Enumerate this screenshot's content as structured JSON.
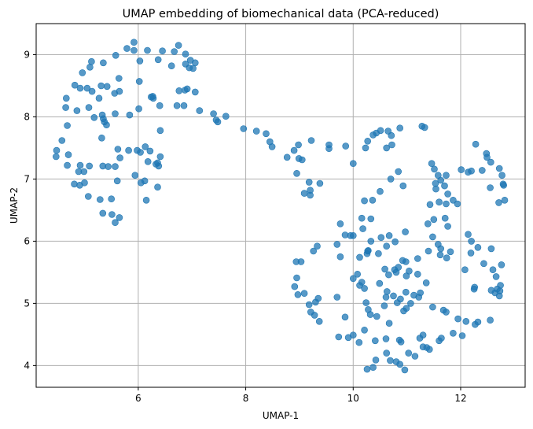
{
  "chart_data": {
    "type": "scatter",
    "title": "UMAP embedding of biomechanical data (PCA-reduced)",
    "xlabel": "UMAP-1",
    "ylabel": "UMAP-2",
    "xlim": [
      4.1,
      13.2
    ],
    "ylim": [
      3.65,
      9.5
    ],
    "xticks": [
      6,
      8,
      10,
      12
    ],
    "yticks": [
      4,
      5,
      6,
      7,
      8,
      9
    ],
    "grid": true,
    "legend": "none",
    "point_color": "#1f77b4",
    "point_alpha": 0.75,
    "points": [
      [
        5.92,
        9.2
      ],
      [
        5.79,
        9.1
      ],
      [
        6.17,
        9.07
      ],
      [
        6.45,
        9.06
      ],
      [
        6.75,
        9.15
      ],
      [
        5.92,
        9.07
      ],
      [
        5.58,
        8.99
      ],
      [
        6.67,
        9.05
      ],
      [
        6.03,
        8.9
      ],
      [
        6.37,
        8.92
      ],
      [
        5.35,
        8.87
      ],
      [
        5.13,
        8.89
      ],
      [
        5.1,
        8.8
      ],
      [
        4.96,
        8.71
      ],
      [
        6.88,
        9.01
      ],
      [
        6.97,
        8.91
      ],
      [
        7.06,
        8.87
      ],
      [
        6.88,
        8.85
      ],
      [
        6.95,
        8.79
      ],
      [
        6.62,
        8.82
      ],
      [
        7.02,
        8.78
      ],
      [
        5.64,
        8.62
      ],
      [
        6.02,
        8.57
      ],
      [
        4.82,
        8.51
      ],
      [
        4.92,
        8.46
      ],
      [
        5.05,
        8.46
      ],
      [
        5.14,
        8.41
      ],
      [
        5.42,
        8.49
      ],
      [
        5.31,
        8.5
      ],
      [
        5.27,
        8.3
      ],
      [
        5.56,
        8.38
      ],
      [
        5.65,
        8.41
      ],
      [
        6.87,
        8.43
      ],
      [
        6.91,
        8.45
      ],
      [
        6.76,
        8.42
      ],
      [
        7.06,
        8.4
      ],
      [
        6.27,
        8.33
      ],
      [
        6.28,
        8.3
      ],
      [
        6.24,
        8.32
      ],
      [
        4.66,
        8.3
      ],
      [
        4.65,
        8.15
      ],
      [
        4.86,
        8.1
      ],
      [
        5.08,
        8.15
      ],
      [
        5.33,
        8.03
      ],
      [
        5.35,
        7.97
      ],
      [
        5.18,
        7.99
      ],
      [
        5.37,
        7.92
      ],
      [
        5.41,
        7.87
      ],
      [
        5.57,
        8.05
      ],
      [
        5.84,
        8.03
      ],
      [
        6.01,
        8.13
      ],
      [
        6.4,
        8.18
      ],
      [
        6.72,
        8.18
      ],
      [
        6.85,
        8.18
      ],
      [
        7.14,
        8.1
      ],
      [
        7.4,
        8.05
      ],
      [
        7.45,
        7.95
      ],
      [
        7.48,
        7.92
      ],
      [
        7.63,
        8.01
      ],
      [
        6.41,
        7.78
      ],
      [
        4.68,
        7.86
      ],
      [
        5.32,
        7.66
      ],
      [
        4.58,
        7.62
      ],
      [
        7.96,
        7.81
      ],
      [
        8.2,
        7.77
      ],
      [
        8.38,
        7.73
      ],
      [
        8.45,
        7.6
      ],
      [
        8.49,
        7.52
      ],
      [
        4.48,
        7.46
      ],
      [
        5.62,
        7.48
      ],
      [
        5.82,
        7.46
      ],
      [
        5.98,
        7.46
      ],
      [
        6.13,
        7.52
      ],
      [
        6.22,
        7.45
      ],
      [
        6.04,
        7.43
      ],
      [
        6.41,
        7.36
      ],
      [
        5.66,
        7.34
      ],
      [
        6.36,
        7.26
      ],
      [
        6.18,
        7.28
      ],
      [
        6.33,
        7.24
      ],
      [
        6.38,
        7.21
      ],
      [
        4.47,
        7.36
      ],
      [
        4.7,
        7.39
      ],
      [
        4.92,
        7.22
      ],
      [
        5.09,
        7.21
      ],
      [
        5.34,
        7.21
      ],
      [
        5.44,
        7.2
      ],
      [
        4.99,
        7.12
      ],
      [
        4.89,
        7.12
      ],
      [
        5.57,
        7.2
      ],
      [
        4.81,
        6.92
      ],
      [
        5.5,
        6.68
      ],
      [
        5.29,
        6.67
      ],
      [
        5.07,
        6.72
      ],
      [
        5.61,
        6.97
      ],
      [
        5.34,
        6.45
      ],
      [
        5.51,
        6.43
      ],
      [
        5.65,
        6.38
      ],
      [
        5.57,
        6.3
      ],
      [
        5.94,
        7.06
      ],
      [
        6.12,
        6.97
      ],
      [
        6.05,
        6.94
      ],
      [
        6.36,
        6.87
      ],
      [
        6.15,
        6.66
      ],
      [
        4.68,
        7.22
      ],
      [
        4.91,
        6.9
      ],
      [
        5.0,
        6.94
      ],
      [
        8.77,
        7.35
      ],
      [
        8.9,
        7.46
      ],
      [
        8.98,
        7.55
      ],
      [
        8.99,
        7.33
      ],
      [
        9.05,
        7.31
      ],
      [
        9.22,
        7.62
      ],
      [
        9.55,
        7.55
      ],
      [
        9.55,
        7.49
      ],
      [
        9.86,
        7.53
      ],
      [
        8.95,
        7.09
      ],
      [
        9.18,
        6.95
      ],
      [
        9.2,
        6.82
      ],
      [
        9.2,
        6.74
      ],
      [
        9.38,
        6.93
      ],
      [
        9.09,
        6.77
      ],
      [
        10.0,
        7.25
      ],
      [
        10.27,
        7.61
      ],
      [
        10.37,
        7.71
      ],
      [
        10.43,
        7.74
      ],
      [
        10.51,
        7.78
      ],
      [
        10.65,
        7.77
      ],
      [
        10.71,
        7.7
      ],
      [
        10.87,
        7.82
      ],
      [
        11.28,
        7.85
      ],
      [
        11.33,
        7.83
      ],
      [
        10.23,
        7.5
      ],
      [
        10.62,
        7.5
      ],
      [
        10.72,
        7.55
      ],
      [
        11.46,
        7.25
      ],
      [
        11.51,
        7.16
      ],
      [
        11.58,
        7.06
      ],
      [
        11.63,
        6.98
      ],
      [
        11.73,
        7.06
      ],
      [
        11.53,
        6.93
      ],
      [
        11.7,
        6.89
      ],
      [
        11.76,
        6.76
      ],
      [
        11.86,
        6.66
      ],
      [
        11.54,
        6.84
      ],
      [
        11.43,
        6.59
      ],
      [
        11.6,
        6.63
      ],
      [
        11.73,
        6.6
      ],
      [
        11.94,
        6.6
      ],
      [
        12.01,
        7.15
      ],
      [
        12.28,
        7.56
      ],
      [
        12.48,
        7.41
      ],
      [
        12.49,
        7.35
      ],
      [
        12.56,
        7.27
      ],
      [
        12.14,
        7.11
      ],
      [
        12.2,
        7.13
      ],
      [
        12.4,
        7.14
      ],
      [
        12.72,
        7.17
      ],
      [
        12.77,
        7.06
      ],
      [
        12.79,
        6.92
      ],
      [
        12.8,
        6.9
      ],
      [
        12.55,
        6.86
      ],
      [
        12.71,
        6.62
      ],
      [
        12.82,
        6.66
      ],
      [
        10.21,
        6.65
      ],
      [
        10.36,
        6.66
      ],
      [
        10.5,
        6.8
      ],
      [
        10.93,
        6.89
      ],
      [
        10.7,
        7.0
      ],
      [
        10.84,
        7.12
      ],
      [
        10.16,
        6.37
      ],
      [
        10.33,
        6.36
      ],
      [
        10.18,
        6.2
      ],
      [
        10.0,
        6.09
      ],
      [
        9.95,
        6.09
      ],
      [
        10.33,
        6.0
      ],
      [
        10.52,
        6.06
      ],
      [
        10.67,
        6.09
      ],
      [
        10.47,
        5.8
      ],
      [
        10.62,
        5.92
      ],
      [
        10.97,
        6.15
      ],
      [
        10.78,
        5.99
      ],
      [
        11.39,
        6.28
      ],
      [
        11.5,
        6.35
      ],
      [
        11.71,
        6.37
      ],
      [
        11.76,
        6.24
      ],
      [
        11.48,
        6.07
      ],
      [
        11.58,
        5.95
      ],
      [
        11.63,
        5.88
      ],
      [
        11.74,
        5.73
      ],
      [
        11.81,
        5.83
      ],
      [
        11.62,
        5.78
      ],
      [
        9.76,
        6.28
      ],
      [
        9.85,
        6.1
      ],
      [
        9.7,
        5.95
      ],
      [
        9.76,
        5.75
      ],
      [
        9.33,
        5.92
      ],
      [
        9.26,
        5.84
      ],
      [
        8.94,
        5.67
      ],
      [
        9.03,
        5.67
      ],
      [
        10.0,
        5.4
      ],
      [
        10.16,
        5.34
      ],
      [
        10.26,
        5.8
      ],
      [
        10.28,
        5.85
      ],
      [
        10.27,
        5.84
      ],
      [
        10.12,
        5.74
      ],
      [
        10.08,
        5.47
      ],
      [
        10.59,
        5.55
      ],
      [
        10.77,
        5.54
      ],
      [
        10.84,
        5.58
      ],
      [
        10.92,
        5.69
      ],
      [
        10.66,
        5.46
      ],
      [
        10.99,
        5.44
      ],
      [
        10.98,
        5.67
      ],
      [
        11.2,
        5.72
      ],
      [
        11.4,
        5.84
      ],
      [
        11.04,
        5.52
      ],
      [
        11.2,
        5.47
      ],
      [
        11.36,
        5.33
      ],
      [
        10.8,
        5.5
      ],
      [
        12.14,
        6.11
      ],
      [
        12.2,
        6.0
      ],
      [
        12.32,
        5.9
      ],
      [
        12.57,
        5.88
      ],
      [
        12.76,
        5.62
      ],
      [
        12.6,
        5.54
      ],
      [
        12.57,
        5.21
      ],
      [
        12.64,
        5.17
      ],
      [
        12.68,
        5.23
      ],
      [
        12.74,
        5.29
      ],
      [
        12.73,
        5.2
      ],
      [
        12.72,
        5.12
      ],
      [
        12.26,
        5.26
      ],
      [
        12.25,
        5.23
      ],
      [
        12.43,
        5.64
      ],
      [
        12.19,
        5.81
      ],
      [
        12.08,
        5.54
      ],
      [
        12.66,
        5.43
      ],
      [
        8.95,
        5.41
      ],
      [
        8.91,
        5.27
      ],
      [
        8.97,
        5.14
      ],
      [
        9.3,
        5.02
      ],
      [
        9.35,
        5.08
      ],
      [
        9.7,
        5.1
      ],
      [
        9.09,
        5.16
      ],
      [
        10.12,
        5.29
      ],
      [
        10.21,
        5.24
      ],
      [
        10.49,
        5.32
      ],
      [
        10.63,
        5.19
      ],
      [
        10.75,
        5.12
      ],
      [
        10.88,
        5.07
      ],
      [
        10.98,
        5.18
      ],
      [
        10.82,
        5.01
      ],
      [
        11.13,
        5.13
      ],
      [
        11.22,
        5.1
      ],
      [
        10.61,
        5.1
      ],
      [
        11.25,
        5.17
      ],
      [
        11.48,
        4.94
      ],
      [
        11.07,
        5.0
      ],
      [
        10.99,
        4.92
      ],
      [
        10.58,
        4.96
      ],
      [
        10.24,
        5.01
      ],
      [
        10.28,
        4.9
      ],
      [
        10.32,
        4.82
      ],
      [
        10.44,
        4.79
      ],
      [
        10.67,
        4.68
      ],
      [
        10.94,
        4.88
      ],
      [
        10.21,
        4.57
      ],
      [
        11.68,
        4.89
      ],
      [
        11.73,
        4.86
      ],
      [
        11.95,
        4.75
      ],
      [
        9.21,
        4.86
      ],
      [
        9.28,
        4.81
      ],
      [
        9.37,
        4.71
      ],
      [
        9.85,
        4.78
      ],
      [
        9.18,
        4.98
      ],
      [
        10.41,
        4.4
      ],
      [
        10.11,
        4.37
      ],
      [
        10.0,
        4.49
      ],
      [
        9.91,
        4.45
      ],
      [
        9.73,
        4.46
      ],
      [
        10.61,
        4.43
      ],
      [
        10.89,
        4.38
      ],
      [
        10.86,
        4.41
      ],
      [
        11.24,
        4.44
      ],
      [
        11.3,
        4.49
      ],
      [
        11.64,
        4.44
      ],
      [
        11.86,
        4.52
      ],
      [
        12.03,
        4.48
      ],
      [
        12.1,
        4.71
      ],
      [
        12.27,
        4.66
      ],
      [
        12.32,
        4.7
      ],
      [
        12.55,
        4.73
      ],
      [
        10.62,
        4.2
      ],
      [
        11.03,
        4.2
      ],
      [
        11.15,
        4.15
      ],
      [
        11.3,
        4.3
      ],
      [
        11.37,
        4.29
      ],
      [
        11.42,
        4.26
      ],
      [
        11.6,
        4.4
      ],
      [
        10.42,
        4.09
      ],
      [
        10.69,
        4.08
      ],
      [
        10.8,
        4.06
      ],
      [
        10.87,
        4.02
      ],
      [
        10.96,
        3.93
      ],
      [
        10.37,
        3.97
      ],
      [
        10.26,
        3.94
      ]
    ]
  }
}
